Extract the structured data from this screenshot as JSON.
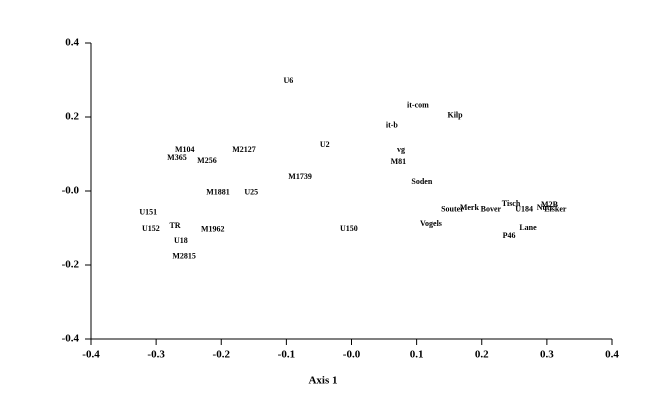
{
  "chart_data": {
    "type": "scatter",
    "x_label": "Axis 1",
    "xlim": [
      -0.4,
      0.4
    ],
    "ylim": [
      -0.4,
      0.4
    ],
    "xticks": [
      -0.4,
      -0.3,
      -0.2,
      -0.1,
      {
        "value": 0,
        "label": "-0.0"
      },
      0.1,
      0.2,
      0.3,
      0.4
    ],
    "yticks": [
      -0.4,
      -0.2,
      {
        "value": 0,
        "label": "-0.0"
      },
      0.2,
      0.4
    ],
    "labels": [
      "U6",
      "it-com",
      "Kilp",
      "it-b",
      "U2",
      "vg",
      "M81",
      "M104",
      "M2127",
      "M365",
      "M256",
      "M1739",
      "Soden",
      "M1881",
      "U25",
      "Tisch",
      "Merk",
      "Souter",
      "Bover",
      "U184",
      "Nutr",
      "M2B",
      "Lisker",
      "U151",
      "Vogels",
      "U150",
      "U152",
      "TR",
      "M1962",
      "Lane",
      "P46",
      "U18",
      "M2815"
    ],
    "x": [
      -0.097,
      0.102,
      0.159,
      0.062,
      -0.041,
      0.076,
      0.072,
      -0.256,
      -0.165,
      -0.268,
      -0.222,
      -0.079,
      0.108,
      -0.205,
      -0.154,
      0.245,
      0.181,
      0.155,
      0.214,
      0.265,
      0.297,
      0.304,
      0.313,
      -0.312,
      0.122,
      -0.004,
      -0.308,
      -0.271,
      -0.213,
      0.271,
      0.242,
      -0.262,
      -0.257
    ],
    "values": [
      0.297,
      0.23,
      0.203,
      0.176,
      0.124,
      0.111,
      0.078,
      0.111,
      0.111,
      0.089,
      0.081,
      0.038,
      0.024,
      -0.005,
      -0.005,
      -0.035,
      -0.046,
      -0.051,
      -0.051,
      -0.051,
      -0.046,
      -0.038,
      -0.051,
      -0.059,
      -0.089,
      -0.103,
      -0.103,
      -0.095,
      -0.105,
      -0.1,
      -0.122,
      -0.135,
      -0.178
    ],
    "color": "#000000"
  }
}
